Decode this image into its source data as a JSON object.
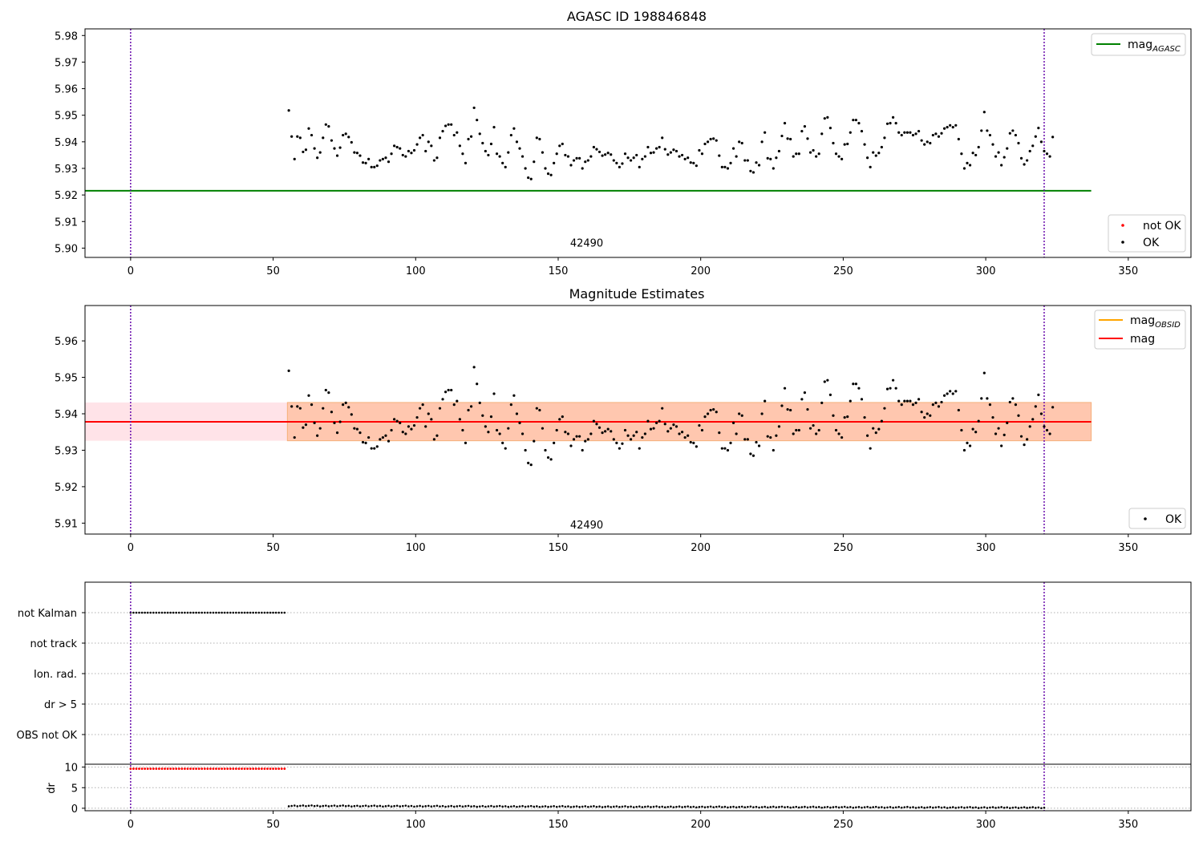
{
  "figure": {
    "colors": {
      "ok": "#000000",
      "not_ok": "#ff0000",
      "mag_agasc": "#008000",
      "mag_obsid": "#ffa500",
      "mag": "#ff0000",
      "band_outer": "#ffc0cb",
      "band_inner": "#ffb080",
      "obs_line": "#6a0dad",
      "grid": "#b0b0b0"
    }
  },
  "chart_data": [
    {
      "type": "scatter",
      "title": "AGASC ID 198846848",
      "xlim": [
        -16,
        372
      ],
      "ylim": [
        5.8965,
        5.9825
      ],
      "x_ticks": [
        0,
        50,
        100,
        150,
        200,
        250,
        300,
        350
      ],
      "y_ticks": [
        5.9,
        5.91,
        5.92,
        5.93,
        5.94,
        5.95,
        5.96,
        5.97,
        5.98
      ],
      "y_tick_labels": [
        "5.90",
        "5.91",
        "5.92",
        "5.93",
        "5.94",
        "5.95",
        "5.96",
        "5.97",
        "5.98"
      ],
      "obs_boundaries_x": [
        0,
        320.5
      ],
      "obsid_annotation": {
        "text": "42490",
        "x": 160,
        "y": 5.9005
      },
      "lines": [
        {
          "name": "mag_AGASC",
          "y": 5.9216,
          "x_range": [
            -16,
            337
          ]
        }
      ],
      "legend_upper": {
        "placement": "top-right",
        "entries": [
          {
            "base": "mag",
            "sub": "AGASC"
          }
        ]
      },
      "legend_lower": {
        "placement": "bottom-right",
        "entries": [
          "not OK",
          "OK"
        ]
      },
      "series": [
        {
          "name": "OK",
          "x_start": 55.5,
          "x_step": 1.0,
          "values": [
            5.9518,
            5.942,
            5.9335,
            5.942,
            5.9415,
            5.9362,
            5.937,
            5.945,
            5.9425,
            5.9375,
            5.934,
            5.936,
            5.9415,
            5.9465,
            5.9458,
            5.9405,
            5.9375,
            5.9348,
            5.9378,
            5.9425,
            5.943,
            5.9418,
            5.9398,
            5.936,
            5.9358,
            5.9348,
            5.9322,
            5.932,
            5.9335,
            5.9305,
            5.9305,
            5.931,
            5.933,
            5.9335,
            5.934,
            5.9325,
            5.9355,
            5.9385,
            5.938,
            5.9375,
            5.935,
            5.9345,
            5.9365,
            5.9358,
            5.9368,
            5.939,
            5.9415,
            5.9425,
            5.9365,
            5.94,
            5.9385,
            5.933,
            5.934,
            5.9415,
            5.944,
            5.946,
            5.9465,
            5.9465,
            5.9425,
            5.9435,
            5.9385,
            5.9355,
            5.932,
            5.941,
            5.942,
            5.9528,
            5.9482,
            5.943,
            5.9395,
            5.9365,
            5.935,
            5.9392,
            5.9455,
            5.9355,
            5.9345,
            5.932,
            5.9305,
            5.936,
            5.9425,
            5.945,
            5.94,
            5.9375,
            5.9345,
            5.93,
            5.9265,
            5.926,
            5.9325,
            5.9415,
            5.941,
            5.936,
            5.93,
            5.928,
            5.9275,
            5.932,
            5.9355,
            5.9385,
            5.9392,
            5.935,
            5.9345,
            5.9312,
            5.933,
            5.9338,
            5.9338,
            5.93,
            5.9325,
            5.933,
            5.9345,
            5.938,
            5.9372,
            5.9362,
            5.9348,
            5.9352,
            5.9358,
            5.9352,
            5.933,
            5.932,
            5.9305,
            5.9318,
            5.9355,
            5.934,
            5.933,
            5.934,
            5.935,
            5.9305,
            5.9335,
            5.9345,
            5.938,
            5.9358,
            5.936,
            5.9375,
            5.938,
            5.9415,
            5.9372,
            5.9352,
            5.936,
            5.937,
            5.9365,
            5.9345,
            5.935,
            5.9335,
            5.934,
            5.9322,
            5.932,
            5.931,
            5.9368,
            5.9355,
            5.9392,
            5.94,
            5.941,
            5.9412,
            5.9405,
            5.9348,
            5.9305,
            5.9305,
            5.93,
            5.932,
            5.9375,
            5.9345,
            5.94,
            5.9395,
            5.933,
            5.933,
            5.929,
            5.9285,
            5.9322,
            5.9312,
            5.94,
            5.9435,
            5.9338,
            5.9335,
            5.93,
            5.934,
            5.9365,
            5.9422,
            5.947,
            5.9412,
            5.941,
            5.9345,
            5.9355,
            5.9355,
            5.944,
            5.9458,
            5.9412,
            5.936,
            5.9368,
            5.9345,
            5.9355,
            5.943,
            5.9488,
            5.9492,
            5.9452,
            5.9395,
            5.9355,
            5.9345,
            5.9335,
            5.939,
            5.9392,
            5.9435,
            5.9482,
            5.9482,
            5.947,
            5.944,
            5.939,
            5.934,
            5.9305,
            5.936,
            5.9348,
            5.9358,
            5.938,
            5.9415,
            5.9468,
            5.947,
            5.9492,
            5.947,
            5.9435,
            5.9425,
            5.9435,
            5.9435,
            5.9435,
            5.9425,
            5.943,
            5.944,
            5.9405,
            5.939,
            5.94,
            5.9395,
            5.9425,
            5.943,
            5.942,
            5.9432,
            5.945,
            5.9455,
            5.9462,
            5.9455,
            5.9462,
            5.941,
            5.9355,
            5.93,
            5.932,
            5.9312,
            5.9358,
            5.935,
            5.938,
            5.9442,
            5.9512,
            5.9442,
            5.9425,
            5.939,
            5.9345,
            5.936,
            5.9312,
            5.9342,
            5.9375,
            5.9432,
            5.9442,
            5.9425,
            5.9395,
            5.9338,
            5.9315,
            5.933,
            5.9365,
            5.9385,
            5.942,
            5.9452,
            5.94,
            5.9365,
            5.9355,
            5.9345,
            5.9418
          ]
        }
      ]
    },
    {
      "type": "scatter",
      "title": "Magnitude Estimates",
      "xlim": [
        -16,
        372
      ],
      "ylim": [
        5.907,
        5.9697
      ],
      "x_ticks": [
        0,
        50,
        100,
        150,
        200,
        250,
        300,
        350
      ],
      "y_ticks": [
        5.91,
        5.92,
        5.93,
        5.94,
        5.95,
        5.96
      ],
      "y_tick_labels": [
        "5.91",
        "5.92",
        "5.93",
        "5.94",
        "5.95",
        "5.96"
      ],
      "obs_boundaries_x": [
        0,
        320.5
      ],
      "obsid_annotation": {
        "text": "42490",
        "x": 160,
        "y": 5.9085
      },
      "lines": [
        {
          "name": "mag_OBSID",
          "y": 5.9378,
          "x_range": [
            55,
            337
          ]
        },
        {
          "name": "mag",
          "y": 5.9378,
          "x_range": [
            -16,
            337
          ]
        }
      ],
      "bands": [
        {
          "name": "mag_range",
          "y_low": 5.9326,
          "y_high": 5.9431,
          "x_range": [
            -16,
            337
          ]
        },
        {
          "name": "mag_OBSID_range",
          "y_low": 5.9326,
          "y_high": 5.9431,
          "x_range": [
            55,
            337
          ]
        }
      ],
      "legend_upper": {
        "placement": "top-right",
        "entries": [
          {
            "base": "mag",
            "sub": "OBSID"
          },
          {
            "base": "mag",
            "sub": ""
          }
        ]
      },
      "legend_lower": {
        "placement": "bottom-right",
        "entries": [
          "OK"
        ]
      },
      "series": [
        {
          "name": "OK",
          "same_as_panel": 0
        }
      ]
    },
    {
      "type": "scatter",
      "title": "",
      "xlim": [
        -16,
        372
      ],
      "x_ticks": [
        0,
        50,
        100,
        150,
        200,
        250,
        300,
        350
      ],
      "obs_boundaries_x": [
        0,
        320.5
      ],
      "flag_rows": [
        "not Kalman",
        "not track",
        "Ion. rad.",
        "dr > 5",
        "OBS not OK"
      ],
      "flag_points": {
        "row": "not Kalman",
        "x_from": 0,
        "x_to": 54,
        "x_step": 1.0
      },
      "dr": {
        "ylabel": "dr",
        "ylim": [
          -0.6,
          10.7
        ],
        "y_ticks": [
          0,
          5,
          10
        ],
        "y_tick_labels": [
          "0",
          "5",
          "10"
        ],
        "not_ok": {
          "x_from": 0,
          "x_to": 54,
          "x_step": 1.0,
          "y": 9.6
        },
        "ok": {
          "x_from": 55.5,
          "x_to": 320.5,
          "x_step": 1.0,
          "y_start": 0.6,
          "y_mid": 0.35,
          "y_end": 0.15
        }
      }
    }
  ]
}
